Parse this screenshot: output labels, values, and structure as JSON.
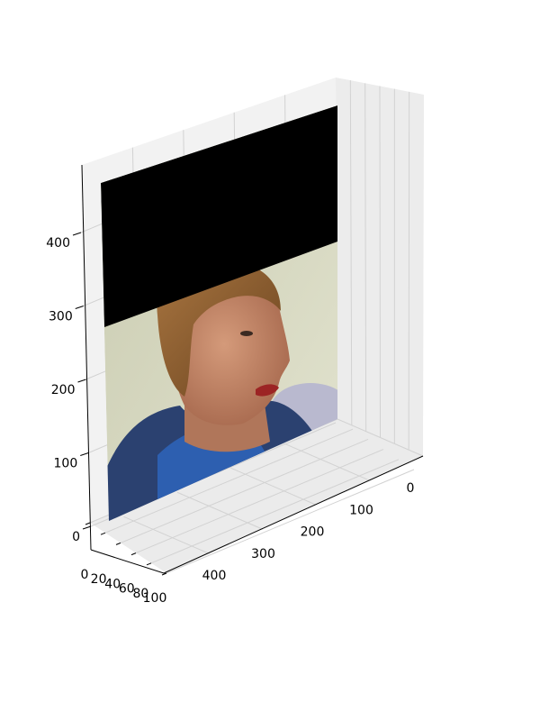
{
  "chart_data": {
    "type": "surface-image-3d",
    "title": "",
    "xlabel": "",
    "ylabel": "",
    "zlabel": "",
    "grid": true,
    "axes": {
      "x": {
        "range": [
          0,
          100
        ],
        "ticks": [
          0,
          20,
          40,
          60,
          80,
          100
        ]
      },
      "y": {
        "range": [
          0,
          480
        ],
        "ticks": [
          0,
          100,
          200,
          300,
          400
        ]
      },
      "z": {
        "range": [
          0,
          480
        ],
        "ticks": [
          0,
          100,
          200,
          300,
          400
        ]
      }
    },
    "image": {
      "description_free": true,
      "masked_fraction_top": 0.33,
      "mask_color": "#000000"
    }
  },
  "colors": {
    "pane": "#f2f2f2",
    "pane_side": "#ececec",
    "grid": "#d2d2d2",
    "mask": "#000000",
    "wall": "#d9dbc0",
    "hoodie": "#2b4170",
    "shirt": "#2d5fb0",
    "skin": "#c98d6e",
    "hair": "#8a5a2c"
  }
}
